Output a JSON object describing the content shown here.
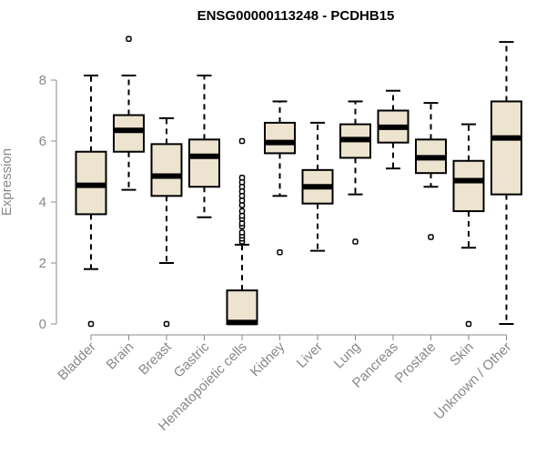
{
  "chart_data": {
    "type": "box",
    "title": "ENSG00000113248 - PCDHB15",
    "ylabel": "Expression",
    "xlabel": "",
    "ylim": [
      0,
      9.4
    ],
    "yticks": [
      0,
      2,
      4,
      6,
      8
    ],
    "box_fill": "#ede4cf",
    "box_stroke": "#000000",
    "outlier_stroke": "#000000",
    "categories": [
      "Bladder",
      "Brain",
      "Breast",
      "Gastric",
      "Hematopoietic cells",
      "Kidney",
      "Liver",
      "Lung",
      "Pancreas",
      "Prostate",
      "Skin",
      "Unknown / Other"
    ],
    "boxes": [
      {
        "min": 1.8,
        "q1": 3.6,
        "median": 4.55,
        "q3": 5.65,
        "max": 8.15,
        "outliers": [
          0.0
        ]
      },
      {
        "min": 4.4,
        "q1": 5.65,
        "median": 6.35,
        "q3": 6.85,
        "max": 8.15,
        "outliers": [
          9.35
        ]
      },
      {
        "min": 2.0,
        "q1": 4.2,
        "median": 4.85,
        "q3": 5.9,
        "max": 6.75,
        "outliers": [
          0.0
        ]
      },
      {
        "min": 3.5,
        "q1": 4.5,
        "median": 5.5,
        "q3": 6.05,
        "max": 8.15,
        "outliers": []
      },
      {
        "min": 0.0,
        "q1": 0.0,
        "median": 0.05,
        "q3": 1.1,
        "max": 2.6,
        "outliers": [
          2.7,
          2.8,
          2.9,
          3.0,
          3.2,
          3.3,
          3.45,
          3.55,
          3.7,
          3.9,
          4.05,
          4.2,
          4.35,
          4.5,
          4.65,
          4.8,
          6.0
        ]
      },
      {
        "min": 4.2,
        "q1": 5.6,
        "median": 5.95,
        "q3": 6.6,
        "max": 7.3,
        "outliers": [
          2.35
        ]
      },
      {
        "min": 2.4,
        "q1": 3.95,
        "median": 4.5,
        "q3": 5.05,
        "max": 6.6,
        "outliers": []
      },
      {
        "min": 4.25,
        "q1": 5.45,
        "median": 6.05,
        "q3": 6.55,
        "max": 7.3,
        "outliers": [
          2.7
        ]
      },
      {
        "min": 5.1,
        "q1": 5.95,
        "median": 6.45,
        "q3": 7.0,
        "max": 7.65,
        "outliers": []
      },
      {
        "min": 4.5,
        "q1": 4.95,
        "median": 5.45,
        "q3": 6.05,
        "max": 7.25,
        "outliers": [
          2.85
        ]
      },
      {
        "min": 2.5,
        "q1": 3.7,
        "median": 4.7,
        "q3": 5.35,
        "max": 6.55,
        "outliers": [
          0.0
        ]
      },
      {
        "min": 0.0,
        "q1": 4.25,
        "median": 6.1,
        "q3": 7.3,
        "max": 9.25,
        "outliers": []
      }
    ],
    "grid": false,
    "legend": "none"
  }
}
